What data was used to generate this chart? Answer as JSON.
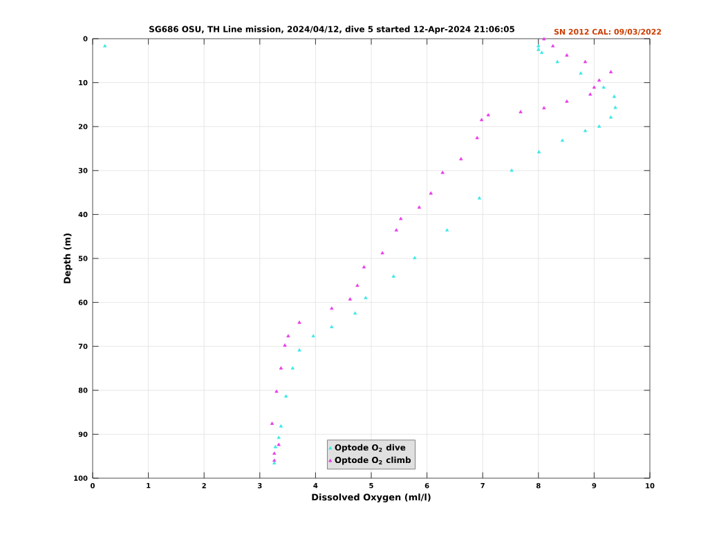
{
  "chart_data": {
    "type": "scatter",
    "title": "SG686 OSU, TH Line mission, 2024/04/12, dive 5 started 12-Apr-2024 21:06:05",
    "xlabel": "Dissolved Oxygen (ml/l)",
    "ylabel": "Depth (m)",
    "annotations": [
      "SN 2012  CAL: 09/03/2022"
    ],
    "xlim": [
      0,
      10
    ],
    "ylim": [
      100,
      0
    ],
    "xticks": [
      0,
      1,
      2,
      3,
      4,
      5,
      6,
      7,
      8,
      9,
      10
    ],
    "yticks": [
      0,
      10,
      20,
      30,
      40,
      50,
      60,
      70,
      80,
      90,
      100
    ],
    "grid": true,
    "legend": "bottom",
    "marker": "triangle",
    "series": [
      {
        "name": "Optode O$_{2}$ dive",
        "color": "#40e8e8",
        "x": [
          0.22,
          8.0,
          8.0,
          8.06,
          8.34,
          8.76,
          9.17,
          9.36,
          9.38,
          9.3,
          9.09,
          8.84,
          8.43,
          8.01,
          7.52,
          6.94,
          6.36,
          5.78,
          5.4,
          4.9,
          4.71,
          4.29,
          3.96,
          3.71,
          3.59,
          3.47,
          3.38,
          3.34,
          3.28,
          3.26
        ],
        "values": [
          1.7,
          1.7,
          2.5,
          3.2,
          5.3,
          7.9,
          11.1,
          13.2,
          15.7,
          17.9,
          20,
          21,
          23.2,
          25.8,
          30,
          36.3,
          43.6,
          49.9,
          54.1,
          59,
          62.5,
          65.6,
          67.7,
          70.9,
          75,
          81.4,
          88.2,
          90.8,
          92.9,
          96.6
        ]
      },
      {
        "name": "Optode O$_{2}$ climb",
        "color": "#e840e8",
        "x": [
          8.1,
          8.26,
          8.51,
          8.84,
          9.3,
          9.09,
          9.0,
          8.93,
          8.51,
          8.1,
          7.68,
          7.1,
          6.98,
          6.9,
          6.61,
          6.28,
          6.07,
          5.86,
          5.53,
          5.45,
          5.2,
          4.87,
          4.75,
          4.62,
          4.29,
          3.71,
          3.51,
          3.45,
          3.38,
          3.3,
          3.22,
          3.34,
          3.26,
          3.26
        ],
        "values": [
          0.1,
          1.7,
          3.8,
          5.3,
          7.6,
          9.5,
          11.1,
          12.7,
          14.3,
          15.8,
          16.7,
          17.4,
          18.5,
          22.6,
          27.4,
          30.5,
          35.2,
          38.4,
          41,
          43.6,
          48.8,
          52,
          56.2,
          59.3,
          61.4,
          64.6,
          67.7,
          69.8,
          75,
          80.3,
          87.6,
          92.4,
          94.4,
          96
        ]
      }
    ]
  }
}
